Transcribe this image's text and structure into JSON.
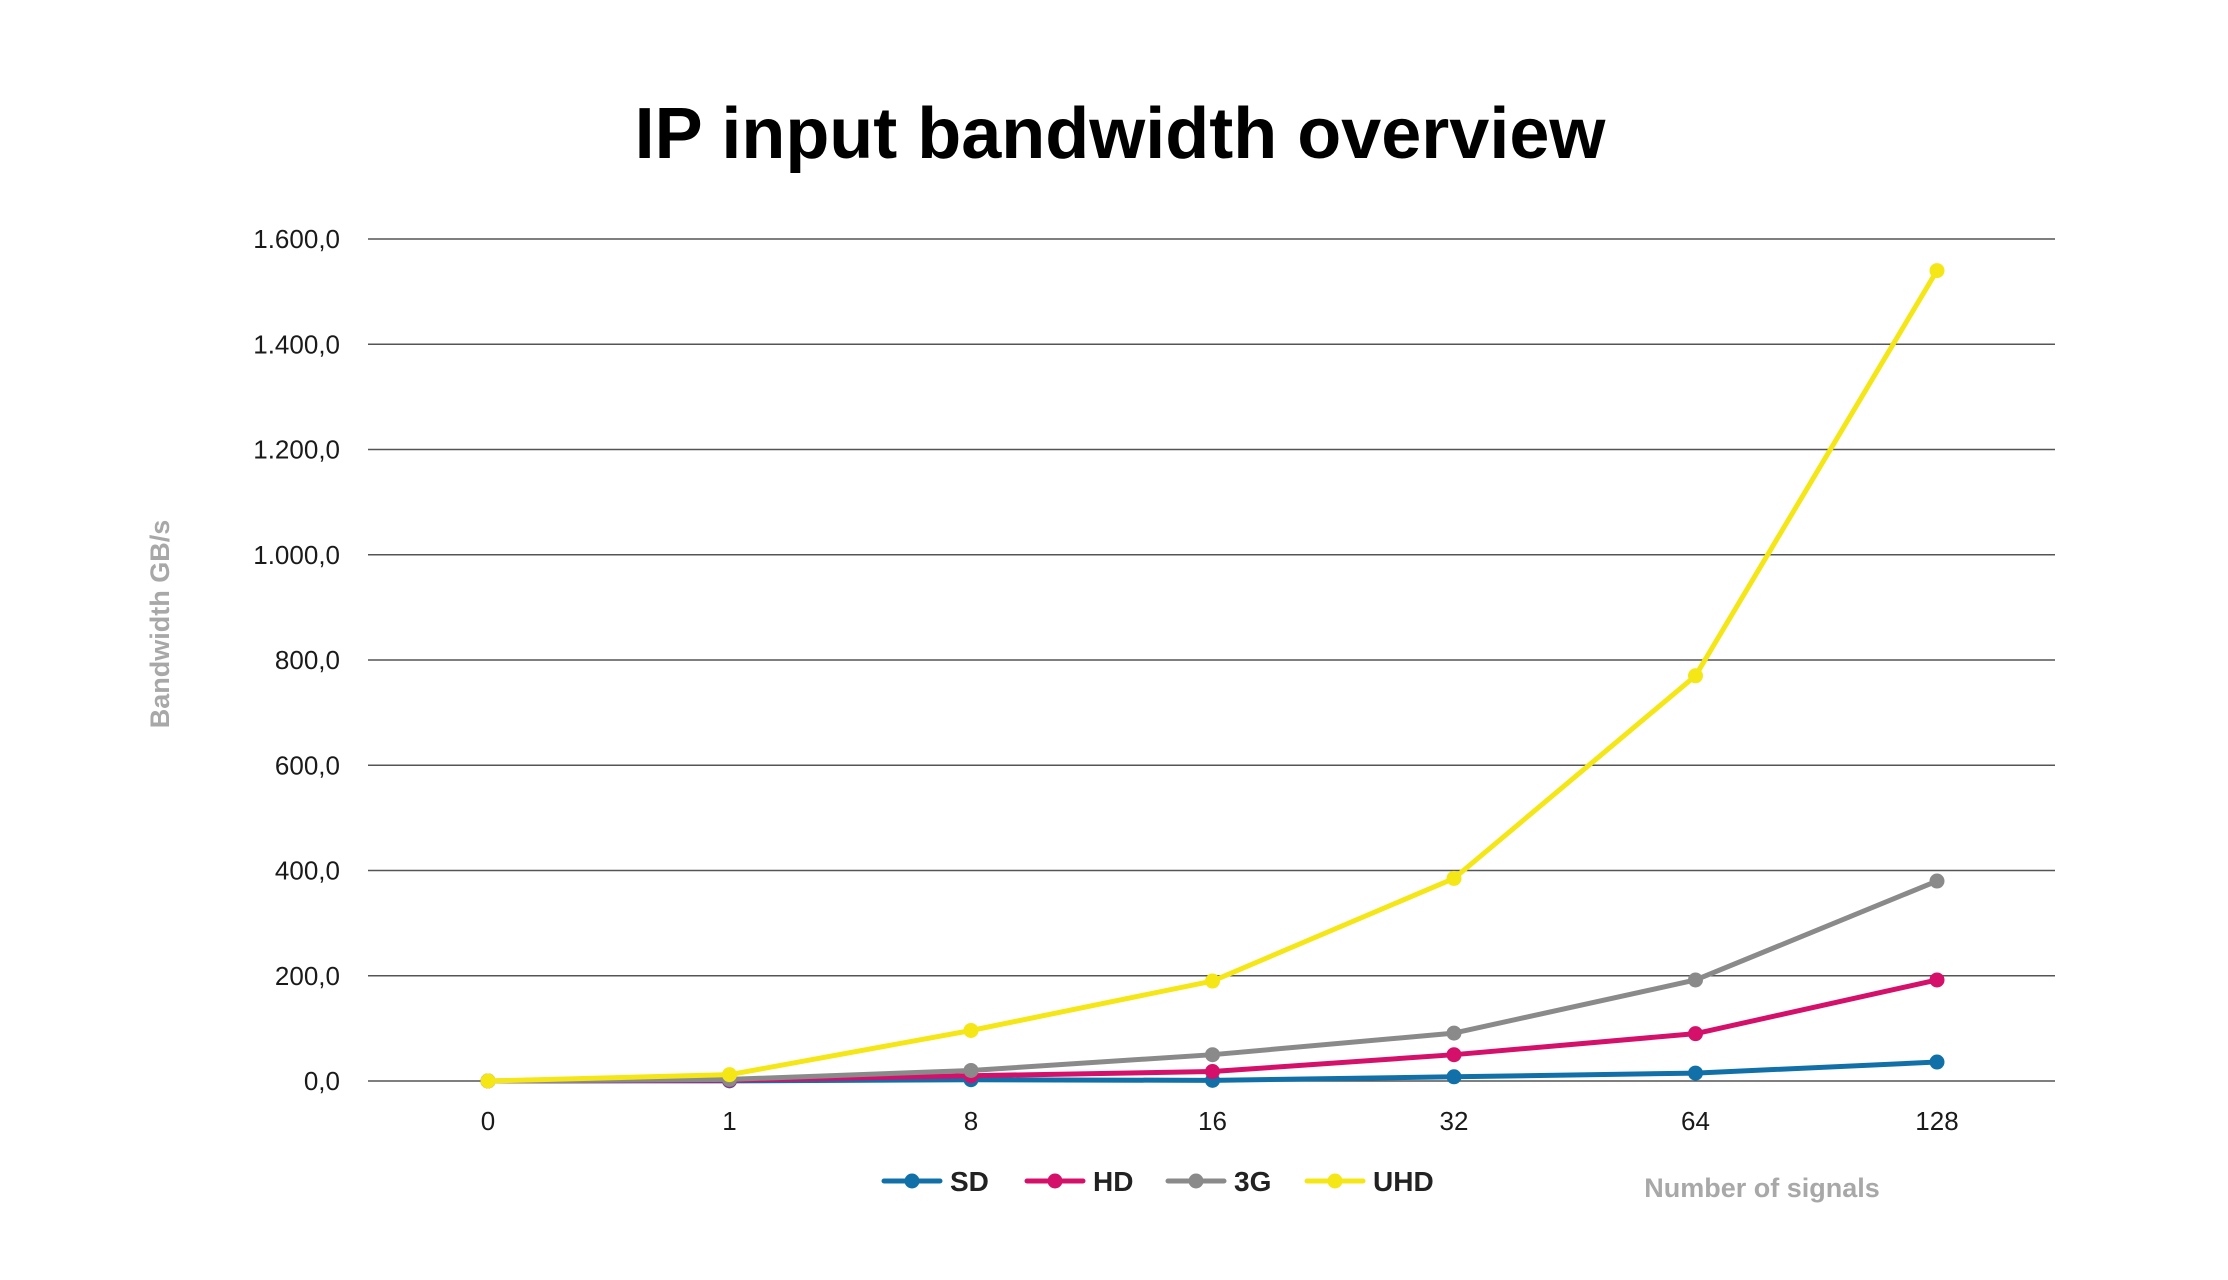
{
  "chart_data": {
    "type": "line",
    "title": "IP input bandwidth overview",
    "xlabel": "Number of signals",
    "ylabel": "Bandwidth GB/s",
    "categories": [
      "0",
      "1",
      "8",
      "16",
      "32",
      "64",
      "128"
    ],
    "ylim": [
      0,
      1600
    ],
    "yticks": [
      0,
      200,
      400,
      600,
      800,
      1000,
      1200,
      1400,
      1600
    ],
    "ytick_labels": [
      "0,0",
      "200,0",
      "400,0",
      "600,0",
      "800,0",
      "1.000,0",
      "1.200,0",
      "1.400,0",
      "1.600,0"
    ],
    "grid": true,
    "legend_position": "bottom",
    "series": [
      {
        "name": "SD",
        "color": "#1170a8",
        "values": [
          0,
          0.3,
          2.4,
          1.2,
          8,
          15,
          36
        ]
      },
      {
        "name": "HD",
        "color": "#d4106a",
        "values": [
          0,
          1.5,
          10,
          18,
          50,
          90,
          192
        ]
      },
      {
        "name": "3G",
        "color": "#8a8a8a",
        "values": [
          0,
          3,
          20,
          50,
          91,
          192,
          380
        ]
      },
      {
        "name": "UHD",
        "color": "#f5e616",
        "values": [
          0,
          12,
          96,
          190,
          385,
          770,
          1540
        ]
      }
    ]
  }
}
